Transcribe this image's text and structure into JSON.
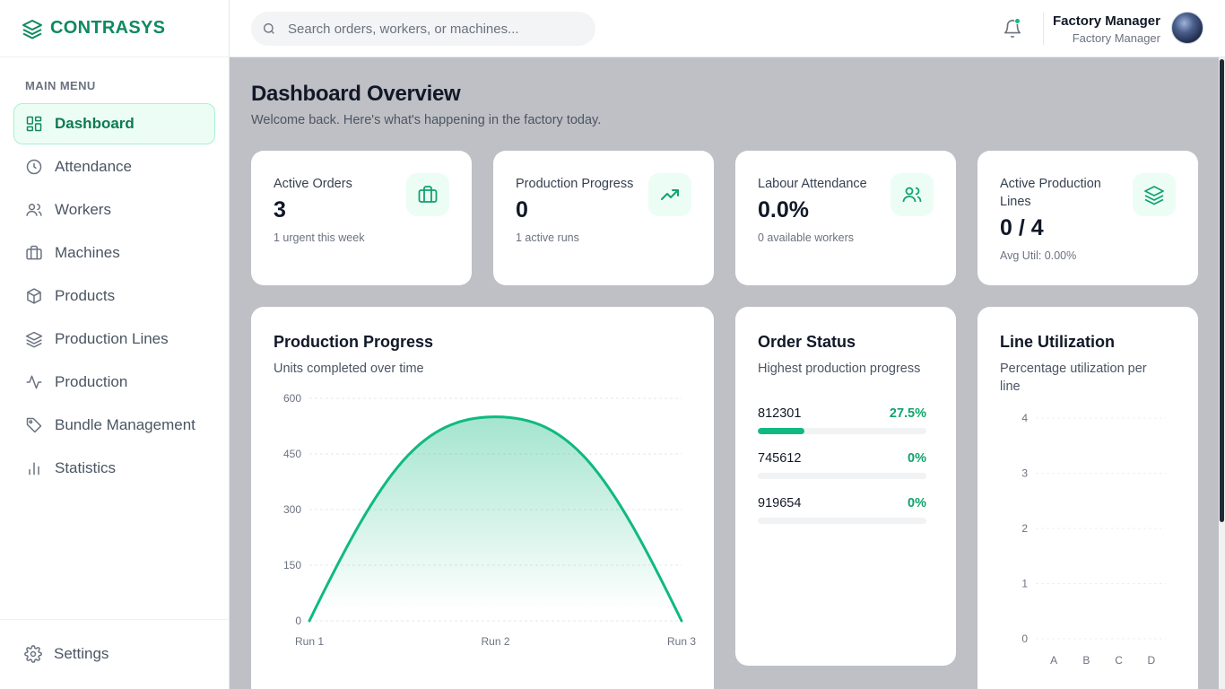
{
  "brand": {
    "name": "CONTRASYS"
  },
  "sidebar": {
    "heading": "MAIN MENU",
    "items": [
      {
        "label": "Dashboard",
        "icon": "grid-icon",
        "active": true
      },
      {
        "label": "Attendance",
        "icon": "clock-icon"
      },
      {
        "label": "Workers",
        "icon": "users-icon"
      },
      {
        "label": "Machines",
        "icon": "briefcase-icon"
      },
      {
        "label": "Products",
        "icon": "box-icon"
      },
      {
        "label": "Production Lines",
        "icon": "layers-icon"
      },
      {
        "label": "Production",
        "icon": "activity-icon"
      },
      {
        "label": "Bundle Management",
        "icon": "tag-icon"
      },
      {
        "label": "Statistics",
        "icon": "bar-chart-icon"
      }
    ],
    "settings_label": "Settings"
  },
  "topbar": {
    "search_placeholder": "Search orders, workers, or machines...",
    "user_name": "Factory Manager",
    "user_role": "Factory Manager"
  },
  "page": {
    "title": "Dashboard Overview",
    "subtitle": "Welcome back. Here's what's happening in the factory today."
  },
  "stats": [
    {
      "label": "Active Orders",
      "value": "3",
      "sub": "1 urgent this week",
      "icon": "briefcase-icon"
    },
    {
      "label": "Production Progress",
      "value": "0",
      "sub": "1 active runs",
      "icon": "trending-up-icon"
    },
    {
      "label": "Labour Attendance",
      "value": "0.0%",
      "sub": "0 available workers",
      "icon": "users-icon"
    },
    {
      "label": "Active Production Lines",
      "value": "0 / 4",
      "sub": "Avg Util: 0.00%",
      "icon": "layers-icon"
    }
  ],
  "production_panel": {
    "title": "Production Progress",
    "subtitle": "Units completed over time"
  },
  "order_panel": {
    "title": "Order Status",
    "subtitle": "Highest production progress",
    "orders": [
      {
        "id": "812301",
        "pct": "27.5%",
        "progress": 0.275
      },
      {
        "id": "745612",
        "pct": "0%",
        "progress": 0
      },
      {
        "id": "919654",
        "pct": "0%",
        "progress": 0
      }
    ]
  },
  "utilization_panel": {
    "title": "Line Utilization",
    "subtitle": "Percentage utilization per line"
  },
  "colors": {
    "accent": "#10b981",
    "accent_dark": "#0f8a5f",
    "main_bg": "#bfc0c5"
  },
  "chart_data": [
    {
      "type": "area",
      "x": [
        "Run 1",
        "Run 2",
        "Run 3"
      ],
      "series": [
        {
          "values": [
            0,
            550,
            0
          ]
        }
      ],
      "yticks": [
        "0",
        "150",
        "300",
        "450",
        "600"
      ],
      "ylim": [
        0,
        600
      ],
      "grid": true,
      "smooth": true
    },
    {
      "type": "bar",
      "categories": [
        "A",
        "B",
        "C",
        "D"
      ],
      "values": [
        0,
        0,
        0,
        0
      ],
      "yticks": [
        "0",
        "1",
        "2",
        "3",
        "4"
      ],
      "ylim": [
        0,
        4
      ],
      "grid": true
    }
  ]
}
